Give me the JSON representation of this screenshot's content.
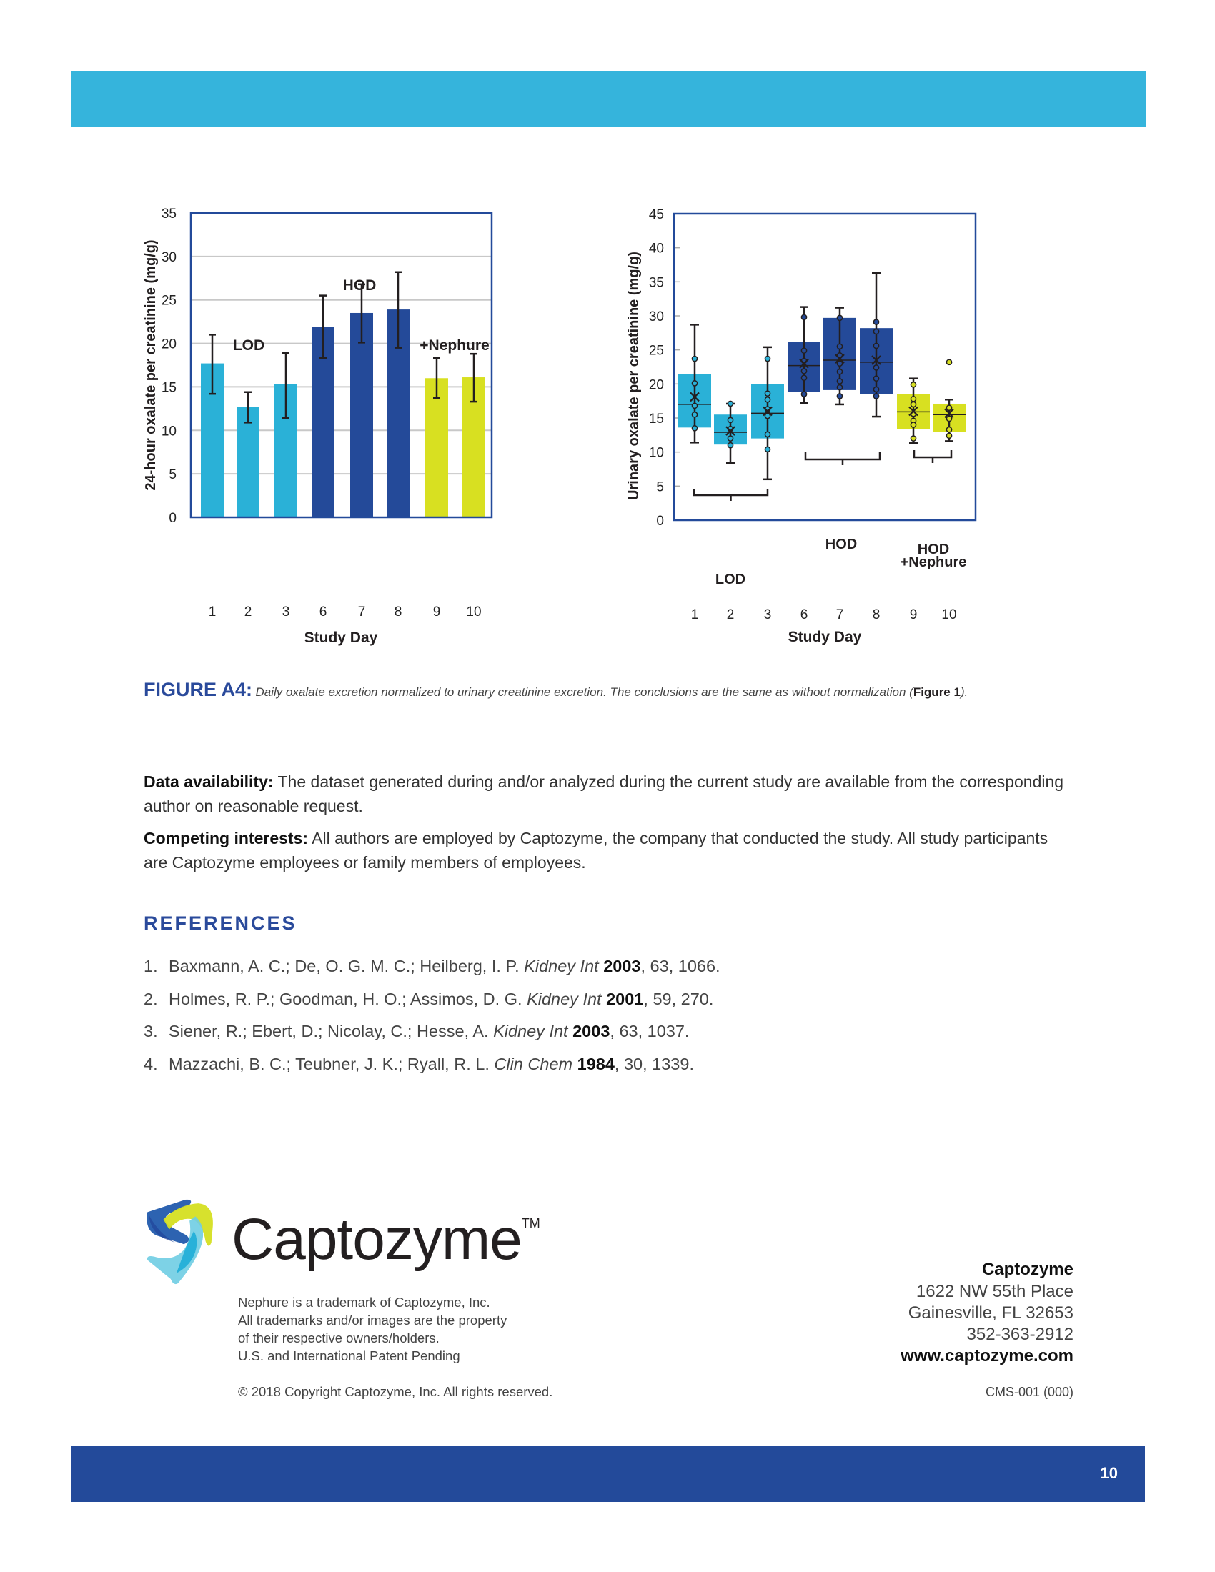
{
  "page_number": "10",
  "colors": {
    "top_bar": "#35b4dc",
    "bottom_bar": "#234a9a",
    "lod": "#2ab1d7",
    "hod": "#244a99",
    "nephure": "#d8e021",
    "heading": "#2a4a9b"
  },
  "chart_data": [
    {
      "type": "bar",
      "ylabel": "24-hour oxalate per creatinine (mg/g)",
      "xlabel": "Study Day",
      "ylim": [
        0,
        35
      ],
      "yticks": [
        "0",
        "5",
        "10",
        "15",
        "20",
        "25",
        "30",
        "35"
      ],
      "grid": true,
      "categories": [
        "1",
        "2",
        "3",
        "6",
        "7",
        "8",
        "9",
        "10"
      ],
      "values": [
        17.7,
        12.7,
        15.3,
        21.9,
        23.5,
        23.9,
        16.0,
        16.1
      ],
      "error_low": [
        14.2,
        10.9,
        11.4,
        18.3,
        20.1,
        19.5,
        13.7,
        13.3
      ],
      "error_high": [
        21.0,
        14.4,
        18.9,
        25.5,
        26.8,
        28.2,
        18.3,
        18.8
      ],
      "groups": [
        "lod",
        "lod",
        "lod",
        "hod",
        "hod",
        "hod",
        "nephure",
        "nephure"
      ],
      "annotations": [
        "LOD",
        "HOD",
        "+Nephure"
      ]
    },
    {
      "type": "box",
      "ylabel": "Urinary oxalate per creatinine (mg/g)",
      "xlabel": "Study Day",
      "ylim": [
        0,
        45
      ],
      "yticks": [
        "0",
        "5",
        "10",
        "15",
        "20",
        "25",
        "30",
        "35",
        "40",
        "45"
      ],
      "grid": false,
      "categories": [
        "1",
        "2",
        "3",
        "6",
        "7",
        "8",
        "9",
        "10"
      ],
      "groups": [
        "lod",
        "lod",
        "lod",
        "hod",
        "hod",
        "hod",
        "nephure",
        "nephure"
      ],
      "boxes": [
        {
          "q1": 13.6,
          "median": 17.0,
          "q3": 21.4,
          "mean": 18.1,
          "whisker_low": 11.4,
          "whisker_high": 28.7,
          "points": [
            23.7,
            20.1,
            16.8,
            15.5,
            13.5
          ],
          "outliers": []
        },
        {
          "q1": 11.1,
          "median": 12.9,
          "q3": 15.5,
          "mean": 13.1,
          "whisker_low": 8.4,
          "whisker_high": 17.1,
          "points": [
            17.1,
            14.7,
            13.4,
            12.0,
            11.0
          ],
          "outliers": []
        },
        {
          "q1": 12.0,
          "median": 15.7,
          "q3": 20.0,
          "mean": 16.0,
          "whisker_low": 6.0,
          "whisker_high": 25.4,
          "points": [
            23.7,
            18.6,
            17.7,
            16.3,
            15.3,
            12.6,
            10.4
          ],
          "outliers": []
        },
        {
          "q1": 18.8,
          "median": 22.7,
          "q3": 26.2,
          "mean": 23.0,
          "whisker_low": 17.2,
          "whisker_high": 31.3,
          "points": [
            29.8,
            24.9,
            23.4,
            21.9,
            20.9,
            18.5
          ],
          "outliers": []
        },
        {
          "q1": 19.1,
          "median": 23.5,
          "q3": 29.7,
          "mean": 23.7,
          "whisker_low": 17.0,
          "whisker_high": 31.2,
          "points": [
            29.7,
            25.5,
            24.2,
            23.0,
            21.8,
            20.4,
            19.5,
            18.2
          ],
          "outliers": []
        },
        {
          "q1": 18.5,
          "median": 23.2,
          "q3": 28.2,
          "mean": 23.5,
          "whisker_low": 15.2,
          "whisker_high": 36.3,
          "points": [
            29.1,
            27.7,
            25.6,
            22.4,
            20.8,
            19.2,
            18.2
          ],
          "outliers": []
        },
        {
          "q1": 13.4,
          "median": 15.9,
          "q3": 18.5,
          "mean": 16.0,
          "whisker_low": 11.3,
          "whisker_high": 20.8,
          "points": [
            19.9,
            17.8,
            17.0,
            15.6,
            14.6,
            14.0,
            12.0
          ],
          "outliers": []
        },
        {
          "q1": 13.0,
          "median": 15.5,
          "q3": 17.1,
          "mean": 15.7,
          "whisker_low": 11.6,
          "whisker_high": 17.7,
          "points": [
            16.5,
            14.9,
            13.3,
            12.4
          ],
          "outliers": [
            23.2
          ]
        }
      ],
      "brackets": [
        {
          "label": "LOD",
          "from": "1",
          "to": "3"
        },
        {
          "label": "HOD",
          "from": "6",
          "to": "8"
        },
        {
          "label": "HOD\n+Nephure",
          "label_lines": [
            "HOD",
            "+Nephure"
          ],
          "from": "9",
          "to": "10"
        }
      ]
    }
  ],
  "caption": {
    "lead": "FIGURE A4:",
    "text": "Daily oxalate excretion normalized to urinary creatinine excretion. The conclusions are the same as without normalization (",
    "ref": "Figure 1",
    "tail": ")."
  },
  "data_availability": {
    "label": "Data availability:",
    "text": " The dataset generated during and/or analyzed during the current study are available from the corresponding author on reasonable request."
  },
  "competing_interests": {
    "label": "Competing interests:",
    "text": " All authors are employed by Captozyme, the company that conducted the study. All study participants are Captozyme employees or family members of employees."
  },
  "references": {
    "title": "REFERENCES",
    "items": [
      {
        "num": "1.",
        "authors": "Baxmann, A. C.; De, O. G. M. C.; Heilberg, I. P. ",
        "journal": "Kidney Int",
        "year": "2003",
        "rest": ", 63, 1066."
      },
      {
        "num": "2.",
        "authors": "Holmes, R. P.; Goodman, H. O.; Assimos, D. G. ",
        "journal": "Kidney Int",
        "year": "2001",
        "rest": ", 59, 270."
      },
      {
        "num": "3.",
        "authors": "Siener, R.; Ebert, D.; Nicolay, C.; Hesse, A. ",
        "journal": "Kidney Int",
        "year": "2003",
        "rest": ", 63, 1037."
      },
      {
        "num": "4.",
        "authors": "Mazzachi, B. C.; Teubner, J. K.; Ryall, R. L. ",
        "journal": "Clin Chem",
        "year": "1984",
        "rest": ", 30, 1339."
      }
    ]
  },
  "footer": {
    "logo_text": "Captozyme",
    "logo_tm": "TM",
    "notes": [
      "Nephure is a trademark of Captozyme, Inc.",
      "All trademarks and/or images are the property",
      "of their respective owners/holders.",
      "U.S. and International Patent Pending"
    ],
    "copyright": "© 2018 Copyright Captozyme, Inc. All rights reserved.",
    "address": {
      "company": "Captozyme",
      "street": "1622 NW 55th Place",
      "city": "Gainesville, FL 32653",
      "phone": "352-363-2912",
      "web": "www.captozyme.com"
    },
    "doc_code": "CMS-001 (000)"
  }
}
